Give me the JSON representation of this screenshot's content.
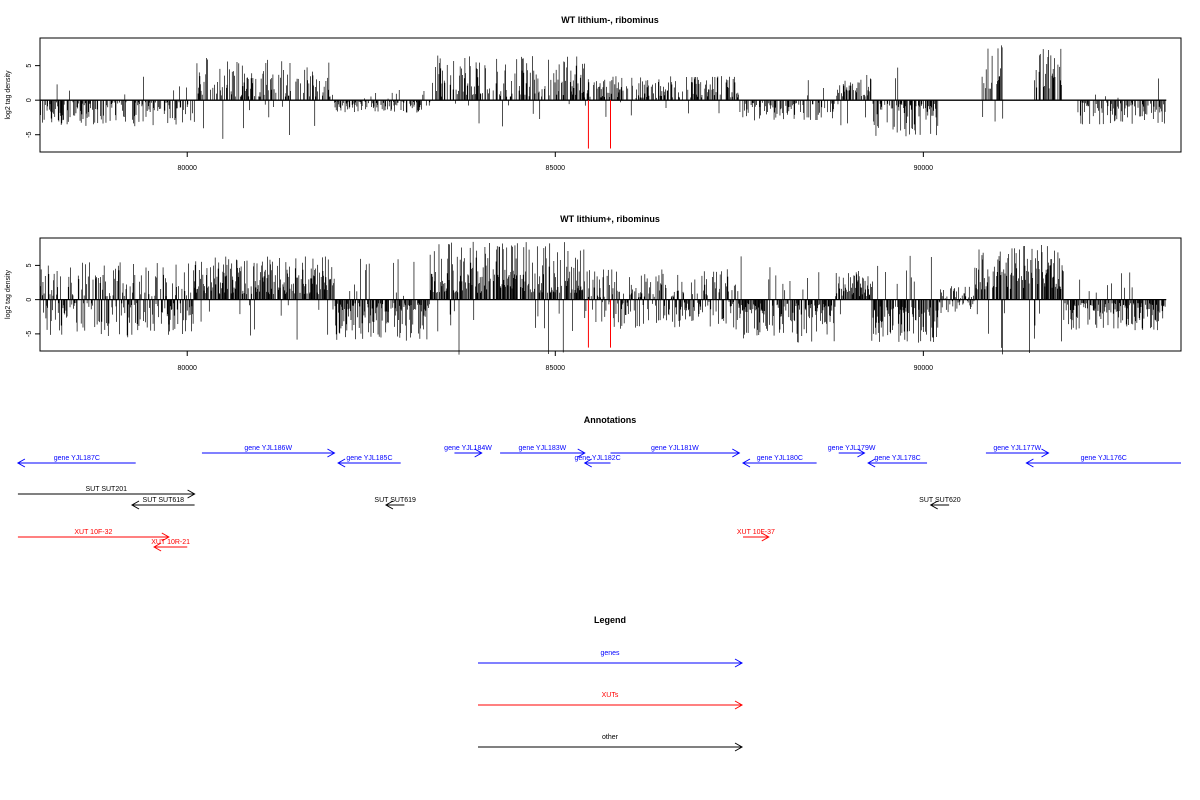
{
  "chart_data": [
    {
      "type": "bar",
      "title": "WT lithium-, ribominus",
      "ylabel": "log2 tag density",
      "xlim": [
        78000,
        93500
      ],
      "ylim": [
        -7.5,
        9
      ],
      "x_ticks": [
        80000,
        85000,
        90000
      ],
      "y_ticks": [
        -5,
        0,
        5
      ],
      "colors": {
        "signal": "#000000",
        "marker": "#ff0000"
      },
      "regions": [
        {
          "start": 78000,
          "end": 80100,
          "sign": -1,
          "min": 0.3,
          "max": 3.8
        },
        {
          "start": 80100,
          "end": 82000,
          "sign": 1,
          "min": 0.5,
          "max": 6.2
        },
        {
          "start": 82000,
          "end": 83300,
          "sign": -1,
          "min": 0.2,
          "max": 1.8
        },
        {
          "start": 83300,
          "end": 85400,
          "sign": 1,
          "min": 0.5,
          "max": 6.5
        },
        {
          "start": 85400,
          "end": 87500,
          "sign": 1,
          "min": 0.3,
          "max": 3.5
        },
        {
          "start": 87500,
          "end": 88800,
          "sign": -1,
          "min": 0.3,
          "max": 3.0
        },
        {
          "start": 88800,
          "end": 89300,
          "sign": 1,
          "min": 0.5,
          "max": 4.0
        },
        {
          "start": 89300,
          "end": 90200,
          "sign": -1,
          "min": 0.5,
          "max": 5.3
        },
        {
          "start": 90750,
          "end": 91100,
          "sign": 1,
          "min": 1.5,
          "max": 8.0
        },
        {
          "start": 91500,
          "end": 91900,
          "sign": 1,
          "min": 1.5,
          "max": 8.0
        },
        {
          "start": 92100,
          "end": 93300,
          "sign": -1,
          "min": 0.3,
          "max": 3.5
        }
      ],
      "red_markers": [
        {
          "x": 85450,
          "y": -7.0
        },
        {
          "x": 85750,
          "y": -7.0
        }
      ],
      "density": 0.55
    },
    {
      "type": "bar",
      "title": "WT lithium+, ribominus",
      "ylabel": "log2 tag density",
      "xlim": [
        78000,
        93500
      ],
      "ylim": [
        -7.5,
        9
      ],
      "x_ticks": [
        80000,
        85000,
        90000
      ],
      "y_ticks": [
        -5,
        0,
        5
      ],
      "colors": {
        "signal": "#000000",
        "marker": "#ff0000"
      },
      "regions": [
        {
          "start": 78000,
          "end": 80100,
          "sign": 0,
          "min": 0.5,
          "max": 5.5
        },
        {
          "start": 80100,
          "end": 82000,
          "sign": 1,
          "min": 0.8,
          "max": 6.3
        },
        {
          "start": 82000,
          "end": 83300,
          "sign": -1,
          "min": 0.5,
          "max": 6.0
        },
        {
          "start": 83300,
          "end": 85400,
          "sign": 1,
          "min": 1.0,
          "max": 8.5
        },
        {
          "start": 85400,
          "end": 87500,
          "sign": 0,
          "min": 0.3,
          "max": 4.5
        },
        {
          "start": 87500,
          "end": 88800,
          "sign": -1,
          "min": 0.5,
          "max": 6.5
        },
        {
          "start": 88800,
          "end": 89300,
          "sign": 1,
          "min": 0.5,
          "max": 4.5
        },
        {
          "start": 89300,
          "end": 90200,
          "sign": -1,
          "min": 1.0,
          "max": 6.5
        },
        {
          "start": 90200,
          "end": 90700,
          "sign": 0,
          "min": 0.2,
          "max": 2.0
        },
        {
          "start": 90700,
          "end": 91900,
          "sign": 1,
          "min": 1.5,
          "max": 8.0
        },
        {
          "start": 91900,
          "end": 93300,
          "sign": -1,
          "min": 0.5,
          "max": 4.5
        }
      ],
      "red_markers": [
        {
          "x": 85450,
          "y": -7.0
        },
        {
          "x": 85750,
          "y": -7.0
        }
      ],
      "density": 0.8
    }
  ],
  "annotations": {
    "title": "Annotations",
    "xlim": [
      78000,
      93500
    ],
    "items": [
      {
        "label": "gene YJL187C",
        "start": 79300,
        "end": 77700,
        "color": "#0000ff",
        "row": 1
      },
      {
        "label": "gene YJL186W",
        "start": 80200,
        "end": 82000,
        "color": "#0000ff",
        "row": 0
      },
      {
        "label": "gene YJL185C",
        "start": 82900,
        "end": 82050,
        "color": "#0000ff",
        "row": 1
      },
      {
        "label": "gene YJL184W",
        "start": 83630,
        "end": 84000,
        "color": "#0000ff",
        "row": 0
      },
      {
        "label": "gene YJL183W",
        "start": 84250,
        "end": 85400,
        "color": "#0000ff",
        "row": 0
      },
      {
        "label": "gene YJL182C",
        "start": 85750,
        "end": 85400,
        "color": "#0000ff",
        "row": 1
      },
      {
        "label": "gene YJL181W",
        "start": 85750,
        "end": 87500,
        "color": "#0000ff",
        "row": 0
      },
      {
        "label": "gene YJL180C",
        "start": 88550,
        "end": 87550,
        "color": "#0000ff",
        "row": 1
      },
      {
        "label": "gene YJL179W",
        "start": 88850,
        "end": 89200,
        "color": "#0000ff",
        "row": 0
      },
      {
        "label": "gene YJL178C",
        "start": 90050,
        "end": 89250,
        "color": "#0000ff",
        "row": 1
      },
      {
        "label": "gene YJL177W",
        "start": 90850,
        "end": 91700,
        "color": "#0000ff",
        "row": 0
      },
      {
        "label": "gene YJL176C",
        "start": 93500,
        "end": 91400,
        "color": "#0000ff",
        "row": 1
      },
      {
        "label": "SUT SUT201",
        "start": 77700,
        "end": 80100,
        "color": "#000000",
        "row": 2
      },
      {
        "label": "SUT SUT618",
        "start": 80100,
        "end": 79250,
        "color": "#000000",
        "row": 3
      },
      {
        "label": "SUT SUT619",
        "start": 82950,
        "end": 82700,
        "color": "#000000",
        "row": 3
      },
      {
        "label": "SUT SUT620",
        "start": 90350,
        "end": 90100,
        "color": "#000000",
        "row": 3
      },
      {
        "label": "XUT 10F-32",
        "start": 77700,
        "end": 79750,
        "color": "#ff0000",
        "row": 4
      },
      {
        "label": "XUT 10R-21",
        "start": 80000,
        "end": 79550,
        "color": "#ff0000",
        "row": 5
      },
      {
        "label": "XUT 10F-37",
        "start": 87550,
        "end": 87900,
        "color": "#ff0000",
        "row": 4
      }
    ]
  },
  "legend": {
    "title": "Legend",
    "items": [
      {
        "label": "genes",
        "color": "#0000ff"
      },
      {
        "label": "XUTs",
        "color": "#ff0000"
      },
      {
        "label": "other",
        "color": "#000000"
      }
    ]
  }
}
